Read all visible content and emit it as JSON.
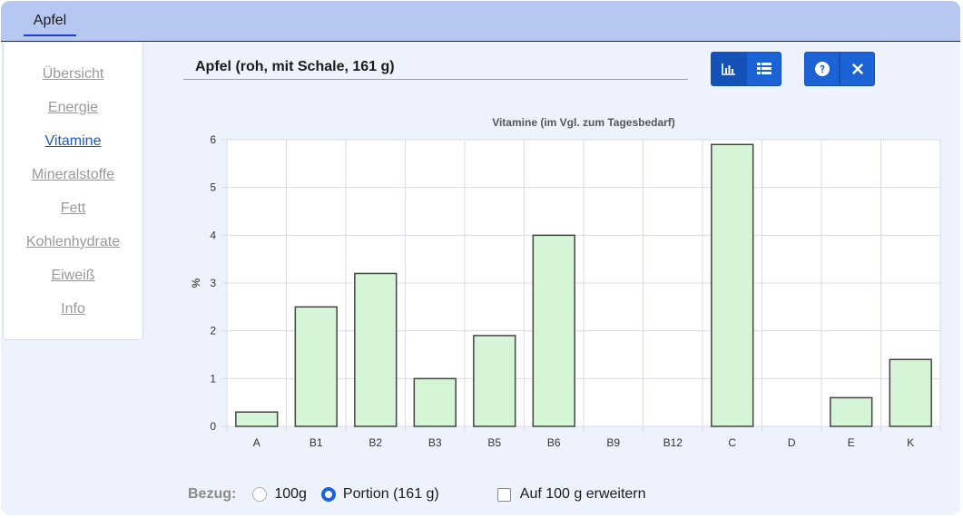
{
  "header": {
    "tab_label": "Apfel"
  },
  "sidebar": {
    "items": [
      {
        "label": "Übersicht"
      },
      {
        "label": "Energie"
      },
      {
        "label": "Vitamine"
      },
      {
        "label": "Mineralstoffe"
      },
      {
        "label": "Fett"
      },
      {
        "label": "Kohlenhydrate"
      },
      {
        "label": "Eiweiß"
      },
      {
        "label": "Info"
      }
    ],
    "active_index": 2
  },
  "main": {
    "title": "Apfel (roh, mit Schale, 161 g)"
  },
  "toolbar": {
    "buttons": [
      "chart-icon",
      "table-icon",
      "help-icon",
      "close-icon"
    ],
    "accent": "#1b62d4"
  },
  "chart_data": {
    "type": "bar",
    "title": "Vitamine (im Vgl. zum Tagesbedarf)",
    "xlabel": "",
    "ylabel": "%",
    "categories": [
      "A",
      "B1",
      "B2",
      "B3",
      "B5",
      "B6",
      "B9",
      "B12",
      "C",
      "D",
      "E",
      "K"
    ],
    "values": [
      0.3,
      2.5,
      3.2,
      1.0,
      1.9,
      4.0,
      0,
      0,
      5.9,
      0,
      0.6,
      1.4
    ],
    "ylim": [
      0,
      6
    ],
    "yticks": [
      0,
      1,
      2,
      3,
      4,
      5,
      6
    ],
    "grid": true,
    "bar_color": "#d6f5d6",
    "bar_edge_color": "#444444"
  },
  "footer": {
    "bezug_label": "Bezug:",
    "option_100g": "100g",
    "option_portion": "Portion (161 g)",
    "selected": "portion",
    "checkbox_label": "Auf 100 g erweitern",
    "checkbox_checked": false
  }
}
